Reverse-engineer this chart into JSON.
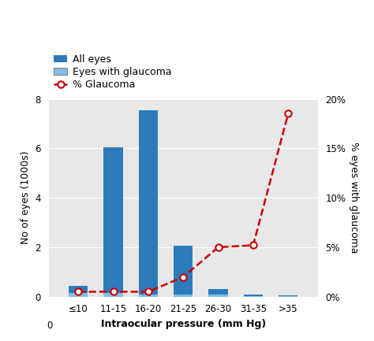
{
  "categories": [
    "≤10",
    "11-15",
    "16-20",
    "21-25",
    "26-30",
    "31-35",
    ">35"
  ],
  "all_eyes": [
    0.45,
    6.05,
    7.55,
    2.05,
    0.3,
    0.08,
    0.05
  ],
  "glaucoma_eyes": [
    0.15,
    0.15,
    0.1,
    0.1,
    0.08,
    0.03,
    0.03
  ],
  "pct_glaucoma": [
    0.5,
    0.5,
    0.5,
    2.0,
    5.0,
    5.2,
    18.5
  ],
  "bar_color_all": "#2e7bbc",
  "bar_color_glaucoma": "#85bce8",
  "line_color": "#cc0000",
  "background_color": "#e8e8e8",
  "figure_color": "#ffffff",
  "ylabel_left": "No of eyes (1000s)",
  "ylabel_right": "% eyes with glaucoma",
  "xlabel": "Intraocular pressure (mm Hg)",
  "ylim_left": [
    0,
    8
  ],
  "ylim_right": [
    0,
    20
  ],
  "yticks_left": [
    0,
    2,
    4,
    6,
    8
  ],
  "yticks_right": [
    0,
    5,
    10,
    15,
    20
  ],
  "ytick_labels_right": [
    "0%",
    "5%",
    "10%",
    "15%",
    "20%"
  ],
  "legend_labels": [
    "All eyes",
    "Eyes with glaucoma",
    "% Glaucoma"
  ],
  "x_zero_label": "0"
}
